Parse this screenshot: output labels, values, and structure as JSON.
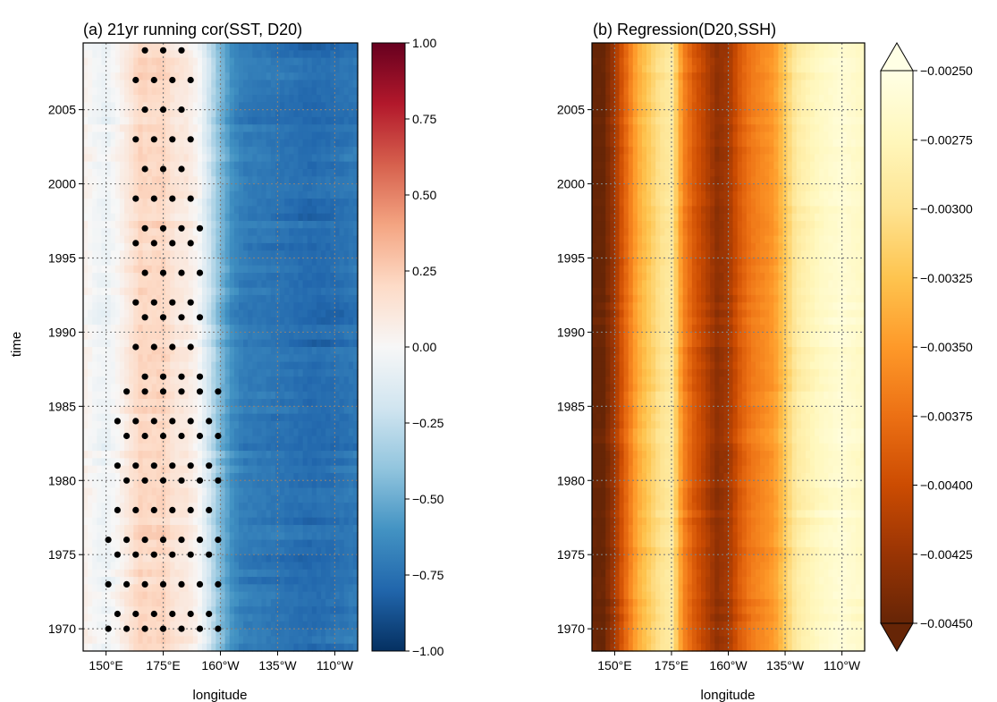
{
  "chart_data": [
    {
      "type": "heatmap",
      "title": "(a) 21yr running cor(SST, D20)",
      "xlabel": "longitude",
      "ylabel": "time",
      "x_ticks": [
        {
          "value": 150,
          "label": "150°E"
        },
        {
          "value": 175,
          "label": "175°E"
        },
        {
          "value": 200,
          "label": "160°W"
        },
        {
          "value": 225,
          "label": "135°W"
        },
        {
          "value": 250,
          "label": "110°W"
        }
      ],
      "y_ticks": [
        {
          "value": 1970,
          "label": "1970"
        },
        {
          "value": 1975,
          "label": "1975"
        },
        {
          "value": 1980,
          "label": "1980"
        },
        {
          "value": 1985,
          "label": "1985"
        },
        {
          "value": 1990,
          "label": "1990"
        },
        {
          "value": 1995,
          "label": "1995"
        },
        {
          "value": 2000,
          "label": "2000"
        },
        {
          "value": 2005,
          "label": "2005"
        }
      ],
      "xlim": [
        140,
        260
      ],
      "ylim": [
        1968.5,
        2009.5
      ],
      "grid": true,
      "colormap": "RdBu_r",
      "colorbar": {
        "range": [
          -1.0,
          1.0
        ],
        "ticks": [
          "1.00",
          "0.75",
          "0.50",
          "0.25",
          "0.00",
          "−0.25",
          "−0.50",
          "−0.75",
          "−1.00"
        ],
        "extend": "neither"
      },
      "profile": {
        "lon": [
          140,
          145,
          150,
          155,
          160,
          165,
          170,
          175,
          180,
          185,
          190,
          195,
          200,
          205,
          210,
          220,
          230,
          240,
          250,
          260
        ],
        "value": [
          0.05,
          -0.02,
          -0.06,
          0.02,
          0.12,
          0.22,
          0.2,
          0.22,
          0.12,
          0.1,
          0.02,
          -0.2,
          -0.45,
          -0.62,
          -0.7,
          -0.72,
          -0.75,
          -0.78,
          -0.76,
          -0.72
        ]
      },
      "stipple": {
        "meaning": "significant correlation",
        "points": [
          {
            "year": 2009,
            "lons": [
              167,
              175,
              183
            ]
          },
          {
            "year": 2007,
            "lons": [
              163,
              171,
              179,
              187
            ]
          },
          {
            "year": 2005,
            "lons": [
              167,
              175,
              183
            ]
          },
          {
            "year": 2003,
            "lons": [
              163,
              171,
              179,
              187
            ]
          },
          {
            "year": 2001,
            "lons": [
              167,
              175,
              183
            ]
          },
          {
            "year": 1999,
            "lons": [
              163,
              171,
              179,
              187
            ]
          },
          {
            "year": 1997,
            "lons": [
              167,
              175,
              183,
              191
            ]
          },
          {
            "year": 1996,
            "lons": [
              163,
              171,
              179,
              187
            ]
          },
          {
            "year": 1994,
            "lons": [
              167,
              175,
              183,
              191
            ]
          },
          {
            "year": 1992,
            "lons": [
              163,
              171,
              179,
              187
            ]
          },
          {
            "year": 1991,
            "lons": [
              167,
              175,
              183,
              191
            ]
          },
          {
            "year": 1989,
            "lons": [
              163,
              171,
              179,
              187
            ]
          },
          {
            "year": 1987,
            "lons": [
              167,
              175,
              183,
              191
            ]
          },
          {
            "year": 1986,
            "lons": [
              159,
              167,
              175,
              183,
              191,
              199
            ]
          },
          {
            "year": 1984,
            "lons": [
              155,
              163,
              171,
              179,
              187,
              195
            ]
          },
          {
            "year": 1983,
            "lons": [
              159,
              167,
              175,
              183,
              191,
              199
            ]
          },
          {
            "year": 1981,
            "lons": [
              155,
              163,
              171,
              179,
              187,
              195
            ]
          },
          {
            "year": 1980,
            "lons": [
              159,
              167,
              175,
              183,
              191,
              199
            ]
          },
          {
            "year": 1978,
            "lons": [
              155,
              163,
              171,
              179,
              187,
              195
            ]
          },
          {
            "year": 1976,
            "lons": [
              151,
              159,
              167,
              175,
              183,
              191,
              199
            ]
          },
          {
            "year": 1975,
            "lons": [
              155,
              163,
              171,
              179,
              187,
              195
            ]
          },
          {
            "year": 1973,
            "lons": [
              151,
              159,
              167,
              175,
              183,
              191,
              199
            ]
          },
          {
            "year": 1971,
            "lons": [
              155,
              163,
              171,
              179,
              187,
              195
            ]
          },
          {
            "year": 1970,
            "lons": [
              151,
              159,
              167,
              175,
              183,
              191,
              199
            ]
          }
        ]
      }
    },
    {
      "type": "heatmap",
      "title": "(b) Regression(D20,SSH)",
      "xlabel": "longitude",
      "ylabel": "",
      "x_ticks": [
        {
          "value": 150,
          "label": "150°E"
        },
        {
          "value": 175,
          "label": "175°E"
        },
        {
          "value": 200,
          "label": "160°W"
        },
        {
          "value": 225,
          "label": "135°W"
        },
        {
          "value": 250,
          "label": "110°W"
        }
      ],
      "y_ticks": [
        {
          "value": 1970,
          "label": "1970"
        },
        {
          "value": 1975,
          "label": "1975"
        },
        {
          "value": 1980,
          "label": "1980"
        },
        {
          "value": 1985,
          "label": "1985"
        },
        {
          "value": 1990,
          "label": "1990"
        },
        {
          "value": 1995,
          "label": "1995"
        },
        {
          "value": 2000,
          "label": "2000"
        },
        {
          "value": 2005,
          "label": "2005"
        }
      ],
      "xlim": [
        140,
        260
      ],
      "ylim": [
        1968.5,
        2009.5
      ],
      "grid": true,
      "colormap": "YlOrBr_r",
      "colorbar": {
        "range": [
          -0.0045,
          -0.0025
        ],
        "ticks": [
          "−0.00250",
          "−0.00275",
          "−0.00300",
          "−0.00325",
          "−0.00350",
          "−0.00375",
          "−0.00400",
          "−0.00425",
          "−0.00450"
        ],
        "extend": "both"
      },
      "profile": {
        "lon": [
          140,
          145,
          150,
          155,
          160,
          165,
          170,
          175,
          180,
          185,
          190,
          195,
          200,
          205,
          210,
          215,
          220,
          225,
          230,
          240,
          250,
          260
        ],
        "value": [
          -0.0045,
          -0.0045,
          -0.0042,
          -0.0038,
          -0.0034,
          -0.0032,
          -0.003,
          -0.0029,
          -0.0036,
          -0.0039,
          -0.0041,
          -0.0043,
          -0.0042,
          -0.0039,
          -0.0037,
          -0.0036,
          -0.0035,
          -0.0032,
          -0.0029,
          -0.0027,
          -0.0026,
          -0.0027
        ]
      }
    }
  ]
}
